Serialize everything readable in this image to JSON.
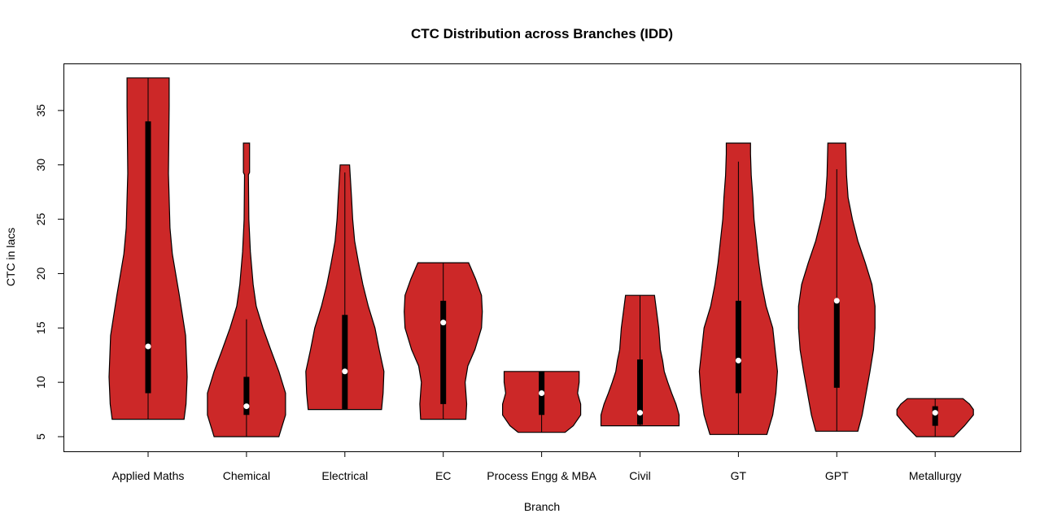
{
  "chart_data": {
    "type": "violin",
    "title": "CTC Distribution across Branches (IDD)",
    "xlabel": "Branch",
    "ylabel": "CTC in lacs",
    "ylim": [
      3.6,
      39.3
    ],
    "yticks": [
      5,
      10,
      15,
      20,
      25,
      30,
      35
    ],
    "grid": false,
    "colors": {
      "fill": "#CC2828",
      "box": "#000000",
      "median": "#FFFFFF"
    },
    "categories": [
      "Applied Maths",
      "Chemical",
      "Electrical",
      "EC",
      "Process Engg & MBA",
      "Civil",
      "GT",
      "GPT",
      "Metallurgy"
    ],
    "series": [
      {
        "min": 6.6,
        "max": 38,
        "q1": 9,
        "q3": 34,
        "median": 13.3,
        "whisker_low": 6.6,
        "whisker_high": 38,
        "density": [
          [
            6.6,
            0.92
          ],
          [
            8,
            0.97
          ],
          [
            10.5,
            1.0
          ],
          [
            14.3,
            0.96
          ],
          [
            18,
            0.8
          ],
          [
            21.8,
            0.62
          ],
          [
            24.2,
            0.56
          ],
          [
            29.2,
            0.52
          ],
          [
            35.4,
            0.54
          ],
          [
            38,
            0.54
          ]
        ]
      },
      {
        "min": 5,
        "max": 32,
        "q1": 7,
        "q3": 10.5,
        "median": 7.8,
        "whisker_low": 5,
        "whisker_high": 15.8,
        "density": [
          [
            5,
            0.83
          ],
          [
            7,
            1.0
          ],
          [
            9,
            1.0
          ],
          [
            11,
            0.83
          ],
          [
            13,
            0.62
          ],
          [
            15,
            0.42
          ],
          [
            17,
            0.25
          ],
          [
            19,
            0.17
          ],
          [
            22,
            0.1
          ],
          [
            25,
            0.06
          ],
          [
            29.1,
            0.05
          ],
          [
            29.3,
            0.08
          ],
          [
            32,
            0.08
          ]
        ]
      },
      {
        "min": 7.5,
        "max": 30,
        "q1": 7.5,
        "q3": 16.2,
        "median": 11,
        "whisker_low": 7.5,
        "whisker_high": 29.3,
        "density": [
          [
            7.5,
            0.94
          ],
          [
            9,
            0.98
          ],
          [
            11,
            1.0
          ],
          [
            13,
            0.88
          ],
          [
            15,
            0.77
          ],
          [
            17,
            0.6
          ],
          [
            19,
            0.46
          ],
          [
            21,
            0.35
          ],
          [
            23,
            0.25
          ],
          [
            25,
            0.2
          ],
          [
            27,
            0.17
          ],
          [
            30,
            0.12
          ]
        ]
      },
      {
        "min": 6.6,
        "max": 21,
        "q1": 8,
        "q3": 17.5,
        "median": 15.5,
        "whisker_low": 6.6,
        "whisker_high": 21,
        "density": [
          [
            6.6,
            0.58
          ],
          [
            8,
            0.6
          ],
          [
            10,
            0.56
          ],
          [
            11.5,
            0.63
          ],
          [
            13,
            0.81
          ],
          [
            15,
            0.98
          ],
          [
            16.5,
            1.0
          ],
          [
            18,
            0.98
          ],
          [
            19.5,
            0.83
          ],
          [
            21,
            0.65
          ]
        ]
      },
      {
        "min": 5.4,
        "max": 11,
        "q1": 7,
        "q3": 11,
        "median": 9,
        "whisker_low": 5.4,
        "whisker_high": 11,
        "density": [
          [
            5.4,
            0.6
          ],
          [
            6,
            0.81
          ],
          [
            7,
            1.0
          ],
          [
            8,
            1.0
          ],
          [
            9,
            0.92
          ],
          [
            10,
            0.96
          ],
          [
            11,
            0.96
          ]
        ]
      },
      {
        "min": 6,
        "max": 18,
        "q1": 6.1,
        "q3": 12.1,
        "median": 7.2,
        "whisker_low": 6,
        "whisker_high": 18,
        "density": [
          [
            6,
            1.0
          ],
          [
            7,
            1.0
          ],
          [
            8,
            0.92
          ],
          [
            9,
            0.81
          ],
          [
            10,
            0.71
          ],
          [
            11,
            0.62
          ],
          [
            12,
            0.58
          ],
          [
            13,
            0.52
          ],
          [
            15,
            0.48
          ],
          [
            18,
            0.37
          ]
        ]
      },
      {
        "min": 5.2,
        "max": 32,
        "q1": 9,
        "q3": 17.5,
        "median": 12,
        "whisker_low": 5.2,
        "whisker_high": 30.3,
        "density": [
          [
            5.2,
            0.73
          ],
          [
            7,
            0.88
          ],
          [
            9,
            0.96
          ],
          [
            11,
            1.0
          ],
          [
            13,
            0.94
          ],
          [
            15,
            0.88
          ],
          [
            17,
            0.71
          ],
          [
            19,
            0.6
          ],
          [
            21,
            0.52
          ],
          [
            23,
            0.46
          ],
          [
            25,
            0.4
          ],
          [
            27,
            0.37
          ],
          [
            29,
            0.33
          ],
          [
            31,
            0.31
          ],
          [
            32,
            0.31
          ]
        ]
      },
      {
        "min": 5.5,
        "max": 32,
        "q1": 9.5,
        "q3": 17.5,
        "median": 17.5,
        "whisker_low": 5.5,
        "whisker_high": 29.6,
        "density": [
          [
            5.5,
            0.54
          ],
          [
            7,
            0.65
          ],
          [
            9,
            0.75
          ],
          [
            11,
            0.85
          ],
          [
            13,
            0.94
          ],
          [
            15,
            0.98
          ],
          [
            17,
            0.98
          ],
          [
            19,
            0.9
          ],
          [
            21,
            0.73
          ],
          [
            23,
            0.54
          ],
          [
            25,
            0.4
          ],
          [
            27,
            0.29
          ],
          [
            29,
            0.25
          ],
          [
            32,
            0.23
          ]
        ]
      },
      {
        "min": 5,
        "max": 8.5,
        "q1": 6,
        "q3": 7.8,
        "median": 7.2,
        "whisker_low": 5,
        "whisker_high": 8.5,
        "density": [
          [
            5,
            0.48
          ],
          [
            6,
            0.75
          ],
          [
            7,
            0.98
          ],
          [
            7.5,
            0.98
          ],
          [
            8,
            0.88
          ],
          [
            8.5,
            0.71
          ]
        ]
      }
    ]
  }
}
